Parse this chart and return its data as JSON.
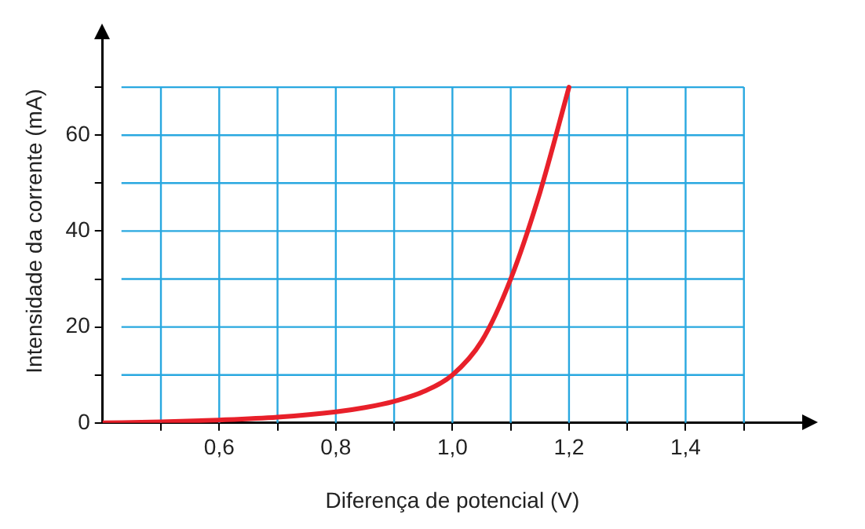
{
  "chart_data": {
    "type": "line",
    "xlabel": "Diferença de potencial (V)",
    "ylabel": "Intensidade da corrente (mA)",
    "xlim": [
      0.4,
      1.6
    ],
    "ylim": [
      0,
      80
    ],
    "xticks": [
      {
        "value": 0.5,
        "label": null
      },
      {
        "value": 0.6,
        "label": "0,6"
      },
      {
        "value": 0.7,
        "label": null
      },
      {
        "value": 0.8,
        "label": "0,8"
      },
      {
        "value": 0.9,
        "label": null
      },
      {
        "value": 1.0,
        "label": "1,0"
      },
      {
        "value": 1.1,
        "label": null
      },
      {
        "value": 1.2,
        "label": "1,2"
      },
      {
        "value": 1.3,
        "label": null
      },
      {
        "value": 1.4,
        "label": "1,4"
      },
      {
        "value": 1.5,
        "label": null
      }
    ],
    "yticks": [
      0,
      {
        "value": 10,
        "label": null
      },
      20,
      {
        "value": 30,
        "label": null
      },
      40,
      {
        "value": 50,
        "label": null
      },
      60,
      {
        "value": 70,
        "label": null
      }
    ],
    "grid": true,
    "marker": "none",
    "line_style": "solid",
    "series": [
      {
        "color": "#e8202a",
        "x": [
          0.4,
          0.5,
          0.6,
          0.7,
          0.8,
          0.85,
          0.9,
          0.95,
          1.0,
          1.05,
          1.1,
          1.15,
          1.2
        ],
        "values": [
          0,
          0.2,
          0.6,
          1.2,
          2.3,
          3.2,
          4.5,
          6.5,
          10,
          17,
          30,
          48,
          70
        ]
      }
    ]
  }
}
